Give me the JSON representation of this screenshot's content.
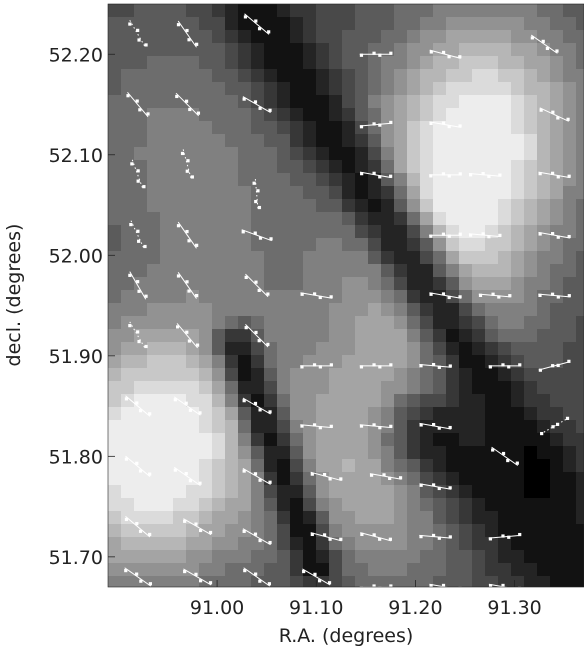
{
  "chart_data": {
    "type": "heatmap",
    "title": "",
    "xlabel": "R.A. (degrees)",
    "ylabel": "decl. (degrees)",
    "xlim": [
      90.89,
      91.37
    ],
    "ylim": [
      51.67,
      52.25
    ],
    "x_ticks": [
      "91.00",
      "91.10",
      "91.20",
      "91.30"
    ],
    "y_ticks": [
      "52.20",
      "52.10",
      "52.00",
      "51.90",
      "51.80",
      "51.70"
    ],
    "x_tick_values": [
      91.0,
      91.1,
      91.2,
      91.3
    ],
    "y_tick_values": [
      52.2,
      52.1,
      52.0,
      51.9,
      51.8,
      51.7
    ],
    "colormap": "grayscale",
    "background_features": {
      "bright_blobs": [
        {
          "ra": 91.27,
          "dec": 52.13,
          "brightness": 0.88
        },
        {
          "ra": 91.22,
          "dec": 52.0,
          "brightness": 0.7
        },
        {
          "ra": 91.17,
          "dec": 51.8,
          "brightness": 0.75
        },
        {
          "ra": 90.92,
          "dec": 51.79,
          "brightness": 0.78
        },
        {
          "ra": 90.97,
          "dec": 51.83,
          "brightness": 0.58
        },
        {
          "ra": 90.95,
          "dec": 52.12,
          "brightness": 0.45
        },
        {
          "ra": 91.02,
          "dec": 52.02,
          "brightness": 0.38
        }
      ],
      "dark_lanes": [
        {
          "from": [
            91.04,
            52.24
          ],
          "to": [
            91.33,
            51.78
          ],
          "width": 0.025
        },
        {
          "from": [
            91.02,
            51.91
          ],
          "to": [
            91.1,
            51.69
          ],
          "width": 0.016
        },
        {
          "from": [
            91.22,
            51.82
          ],
          "to": [
            91.37,
            51.69
          ],
          "width": 0.04
        }
      ]
    },
    "vectors": [
      {
        "ra": 90.92,
        "dec": 52.22,
        "angle": -60,
        "dotted": true
      },
      {
        "ra": 90.97,
        "dec": 52.22,
        "angle": -55
      },
      {
        "ra": 91.04,
        "dec": 52.23,
        "angle": -40
      },
      {
        "ra": 91.16,
        "dec": 52.2,
        "angle": 0
      },
      {
        "ra": 91.23,
        "dec": 52.2,
        "angle": -15
      },
      {
        "ra": 91.33,
        "dec": 52.21,
        "angle": -35
      },
      {
        "ra": 90.92,
        "dec": 52.15,
        "angle": -50
      },
      {
        "ra": 90.97,
        "dec": 52.15,
        "angle": -45
      },
      {
        "ra": 91.04,
        "dec": 52.15,
        "angle": -30
      },
      {
        "ra": 91.16,
        "dec": 52.13,
        "angle": 5
      },
      {
        "ra": 91.23,
        "dec": 52.13,
        "angle": -10
      },
      {
        "ra": 91.34,
        "dec": 52.14,
        "angle": -25
      },
      {
        "ra": 90.92,
        "dec": 52.08,
        "angle": -70,
        "dotted": true
      },
      {
        "ra": 90.97,
        "dec": 52.09,
        "angle": -75,
        "dotted": true
      },
      {
        "ra": 91.04,
        "dec": 52.06,
        "angle": -85,
        "dotted": true
      },
      {
        "ra": 91.16,
        "dec": 52.08,
        "angle": -10
      },
      {
        "ra": 91.23,
        "dec": 52.08,
        "angle": 0
      },
      {
        "ra": 91.27,
        "dec": 52.08,
        "angle": -5
      },
      {
        "ra": 91.34,
        "dec": 52.08,
        "angle": -10
      },
      {
        "ra": 90.92,
        "dec": 52.02,
        "angle": -65,
        "dotted": true
      },
      {
        "ra": 90.97,
        "dec": 52.02,
        "angle": -55
      },
      {
        "ra": 91.04,
        "dec": 52.02,
        "angle": -20
      },
      {
        "ra": 91.23,
        "dec": 52.02,
        "angle": 0
      },
      {
        "ra": 91.27,
        "dec": 52.02,
        "angle": -5
      },
      {
        "ra": 91.34,
        "dec": 52.02,
        "angle": -10
      },
      {
        "ra": 90.92,
        "dec": 51.97,
        "angle": -60
      },
      {
        "ra": 90.97,
        "dec": 51.97,
        "angle": -55
      },
      {
        "ra": 91.04,
        "dec": 51.97,
        "angle": -45
      },
      {
        "ra": 91.1,
        "dec": 51.96,
        "angle": -10
      },
      {
        "ra": 91.23,
        "dec": 51.96,
        "angle": -10
      },
      {
        "ra": 91.28,
        "dec": 51.96,
        "angle": -5
      },
      {
        "ra": 91.34,
        "dec": 51.96,
        "angle": -5
      },
      {
        "ra": 90.92,
        "dec": 51.92,
        "angle": -60,
        "dotted": true
      },
      {
        "ra": 90.97,
        "dec": 51.92,
        "angle": -50
      },
      {
        "ra": 91.04,
        "dec": 51.92,
        "angle": -45
      },
      {
        "ra": 91.1,
        "dec": 51.89,
        "angle": 0
      },
      {
        "ra": 91.16,
        "dec": 51.89,
        "angle": 0
      },
      {
        "ra": 91.22,
        "dec": 51.89,
        "angle": -5
      },
      {
        "ra": 91.29,
        "dec": 51.89,
        "angle": 0
      },
      {
        "ra": 91.34,
        "dec": 51.89,
        "angle": 15
      },
      {
        "ra": 90.92,
        "dec": 51.85,
        "angle": -40
      },
      {
        "ra": 90.97,
        "dec": 51.85,
        "angle": -35
      },
      {
        "ra": 91.04,
        "dec": 51.85,
        "angle": -30
      },
      {
        "ra": 91.1,
        "dec": 51.83,
        "angle": -5
      },
      {
        "ra": 91.16,
        "dec": 51.83,
        "angle": -5
      },
      {
        "ra": 91.22,
        "dec": 51.83,
        "angle": -10
      },
      {
        "ra": 91.29,
        "dec": 51.8,
        "angle": -35
      },
      {
        "ra": 91.34,
        "dec": 51.83,
        "angle": 30,
        "dotted": true
      },
      {
        "ra": 90.92,
        "dec": 51.79,
        "angle": -40
      },
      {
        "ra": 90.97,
        "dec": 51.78,
        "angle": -35
      },
      {
        "ra": 91.04,
        "dec": 51.78,
        "angle": -30
      },
      {
        "ra": 91.11,
        "dec": 51.78,
        "angle": -15
      },
      {
        "ra": 91.17,
        "dec": 51.78,
        "angle": -10
      },
      {
        "ra": 91.22,
        "dec": 51.77,
        "angle": -10
      },
      {
        "ra": 90.92,
        "dec": 51.73,
        "angle": -40
      },
      {
        "ra": 90.98,
        "dec": 51.73,
        "angle": -30
      },
      {
        "ra": 91.04,
        "dec": 51.72,
        "angle": -30
      },
      {
        "ra": 91.11,
        "dec": 51.72,
        "angle": -15
      },
      {
        "ra": 91.16,
        "dec": 51.72,
        "angle": -15
      },
      {
        "ra": 91.22,
        "dec": 51.72,
        "angle": -5
      },
      {
        "ra": 91.29,
        "dec": 51.72,
        "angle": 5
      },
      {
        "ra": 90.92,
        "dec": 51.68,
        "angle": -35
      },
      {
        "ra": 90.98,
        "dec": 51.68,
        "angle": -30
      },
      {
        "ra": 91.04,
        "dec": 51.68,
        "angle": -35
      },
      {
        "ra": 91.1,
        "dec": 51.68,
        "angle": -30
      },
      {
        "ra": 91.16,
        "dec": 51.67,
        "angle": 0
      },
      {
        "ra": 91.23,
        "dec": 51.67,
        "angle": -10
      },
      {
        "ra": 91.29,
        "dec": 51.67,
        "angle": -10
      }
    ]
  }
}
